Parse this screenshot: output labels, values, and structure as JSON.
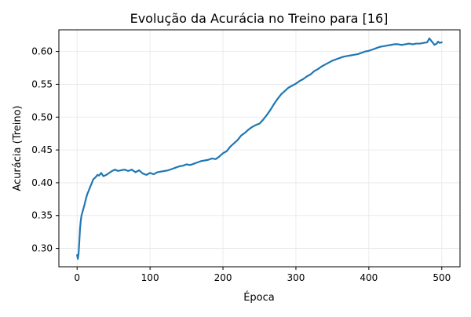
{
  "chart_data": {
    "type": "line",
    "title": "Evolução da Acurácia no Treino para [16]",
    "xlabel": "Época",
    "ylabel": "Acurácia (Treino)",
    "xlim": [
      -25,
      525
    ],
    "ylim": [
      0.272,
      0.633
    ],
    "grid": true,
    "legend": "none",
    "xticks": [
      0,
      100,
      200,
      300,
      400,
      500
    ],
    "xtick_labels": [
      "0",
      "100",
      "200",
      "300",
      "400",
      "500"
    ],
    "yticks": [
      0.3,
      0.35,
      0.4,
      0.45,
      0.5,
      0.55,
      0.6
    ],
    "ytick_labels": [
      "0.30",
      "0.35",
      "0.40",
      "0.45",
      "0.50",
      "0.55",
      "0.60"
    ],
    "series": [
      {
        "color": "#1f77b4",
        "x": [
          0,
          1,
          2,
          3,
          4,
          5,
          6,
          7,
          8,
          10,
          12,
          14,
          16,
          18,
          20,
          22,
          25,
          28,
          30,
          33,
          36,
          40,
          44,
          48,
          52,
          56,
          60,
          65,
          70,
          75,
          80,
          85,
          90,
          95,
          100,
          105,
          110,
          115,
          120,
          125,
          130,
          135,
          140,
          145,
          150,
          155,
          160,
          165,
          170,
          175,
          180,
          185,
          190,
          195,
          200,
          205,
          210,
          215,
          220,
          225,
          230,
          235,
          240,
          245,
          250,
          255,
          260,
          265,
          270,
          275,
          280,
          285,
          290,
          295,
          300,
          305,
          310,
          315,
          320,
          325,
          330,
          335,
          340,
          345,
          350,
          355,
          360,
          365,
          370,
          375,
          380,
          385,
          390,
          395,
          400,
          405,
          410,
          415,
          420,
          425,
          430,
          435,
          440,
          445,
          450,
          455,
          460,
          465,
          470,
          475,
          480,
          483,
          485,
          488,
          490,
          493,
          495,
          497,
          500
        ],
        "y": [
          0.29,
          0.284,
          0.292,
          0.31,
          0.33,
          0.342,
          0.35,
          0.354,
          0.358,
          0.366,
          0.375,
          0.383,
          0.388,
          0.394,
          0.399,
          0.405,
          0.408,
          0.412,
          0.411,
          0.415,
          0.41,
          0.412,
          0.415,
          0.418,
          0.42,
          0.418,
          0.419,
          0.42,
          0.418,
          0.42,
          0.416,
          0.419,
          0.414,
          0.412,
          0.415,
          0.413,
          0.416,
          0.417,
          0.418,
          0.419,
          0.421,
          0.423,
          0.425,
          0.426,
          0.428,
          0.427,
          0.429,
          0.431,
          0.433,
          0.434,
          0.435,
          0.437,
          0.436,
          0.44,
          0.445,
          0.448,
          0.455,
          0.46,
          0.465,
          0.472,
          0.476,
          0.481,
          0.485,
          0.488,
          0.49,
          0.496,
          0.503,
          0.511,
          0.52,
          0.528,
          0.535,
          0.54,
          0.545,
          0.548,
          0.551,
          0.555,
          0.558,
          0.562,
          0.565,
          0.57,
          0.573,
          0.577,
          0.58,
          0.583,
          0.586,
          0.588,
          0.59,
          0.592,
          0.593,
          0.594,
          0.595,
          0.596,
          0.598,
          0.6,
          0.601,
          0.603,
          0.605,
          0.607,
          0.608,
          0.609,
          0.61,
          0.611,
          0.611,
          0.61,
          0.611,
          0.612,
          0.611,
          0.612,
          0.612,
          0.613,
          0.614,
          0.62,
          0.617,
          0.613,
          0.61,
          0.612,
          0.615,
          0.613,
          0.614
        ]
      }
    ]
  }
}
